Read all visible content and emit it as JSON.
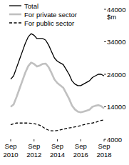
{
  "chart_data": {
    "type": "line",
    "y_label": "$m",
    "categories": [
      "Sep 2010",
      null,
      null,
      null,
      null,
      null,
      null,
      null,
      "Sep 2012",
      null,
      null,
      null,
      null,
      null,
      null,
      null,
      "Sep 2014",
      null,
      null,
      null,
      null,
      null,
      null,
      null,
      "Sep 2016",
      null,
      null,
      null,
      null,
      null,
      null,
      null,
      "Sep 2018"
    ],
    "series": [
      {
        "name": "Total",
        "color": "#000000",
        "line_style": "solid",
        "values": [
          22500,
          23500,
          26000,
          28500,
          31000,
          33500,
          35500,
          36500,
          36000,
          35000,
          35000,
          35000,
          34500,
          33000,
          31000,
          29000,
          28000,
          27500,
          27000,
          25500,
          24000,
          22000,
          21000,
          20500,
          20500,
          21000,
          21500,
          22000,
          23000,
          23500,
          24000,
          24000,
          23500
        ]
      },
      {
        "name": "For private sector",
        "color": "#c0c0c0",
        "line_style": "solid",
        "values": [
          14000,
          14700,
          17000,
          19500,
          22000,
          24500,
          26500,
          27600,
          27200,
          26400,
          26700,
          27200,
          27300,
          26200,
          24400,
          22400,
          21300,
          20600,
          19900,
          18200,
          16500,
          14400,
          13200,
          12500,
          12300,
          12500,
          12800,
          13100,
          14000,
          14300,
          14500,
          14200,
          13500
        ]
      },
      {
        "name": "For public sector",
        "color": "#000000",
        "line_style": "dashed",
        "values": [
          8500,
          8800,
          9000,
          9000,
          9000,
          9000,
          9000,
          8900,
          8800,
          8600,
          8300,
          7800,
          7200,
          6800,
          6600,
          6600,
          6700,
          6900,
          7100,
          7300,
          7500,
          7600,
          7800,
          8000,
          8200,
          8500,
          8700,
          8900,
          9000,
          9200,
          9500,
          9800,
          10000
        ]
      }
    ],
    "ylim": [
      4000,
      44000
    ],
    "yticks": [
      4000,
      14000,
      24000,
      34000,
      44000
    ],
    "grid": false,
    "legend": "top-left"
  }
}
